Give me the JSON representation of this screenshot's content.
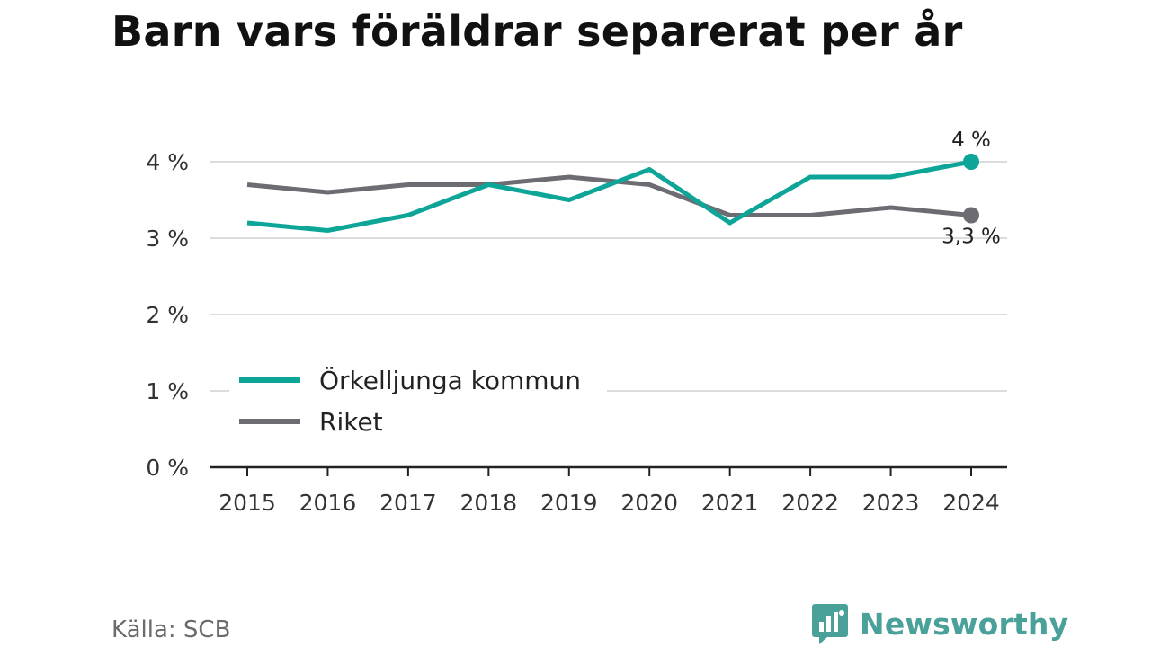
{
  "title": "Barn vars föräldrar separerat per år",
  "source": "Källa: SCB",
  "brand": {
    "name": "Newsworthy",
    "icon": "bar-chart-speech-bubble-icon",
    "color": "#4aa19a"
  },
  "chart_data": {
    "type": "line",
    "title": "Barn vars föräldrar separerat per år",
    "x": [
      "2015",
      "2016",
      "2017",
      "2018",
      "2019",
      "2020",
      "2021",
      "2022",
      "2023",
      "2024"
    ],
    "ylim": [
      0,
      4
    ],
    "yticks": [
      "0 %",
      "1 %",
      "2 %",
      "3 %",
      "4 %"
    ],
    "grid": true,
    "legend_position": "left-middle",
    "series": [
      {
        "name": "Örkelljunga kommun",
        "color": "#0ca597",
        "values": [
          3.2,
          3.1,
          3.3,
          3.7,
          3.5,
          3.9,
          3.2,
          3.8,
          3.8,
          4.0
        ],
        "end_label": "4 %"
      },
      {
        "name": "Riket",
        "color": "#6d6c72",
        "values": [
          3.7,
          3.6,
          3.7,
          3.7,
          3.8,
          3.7,
          3.3,
          3.3,
          3.4,
          3.3
        ],
        "end_label": "3,3 %"
      }
    ]
  }
}
